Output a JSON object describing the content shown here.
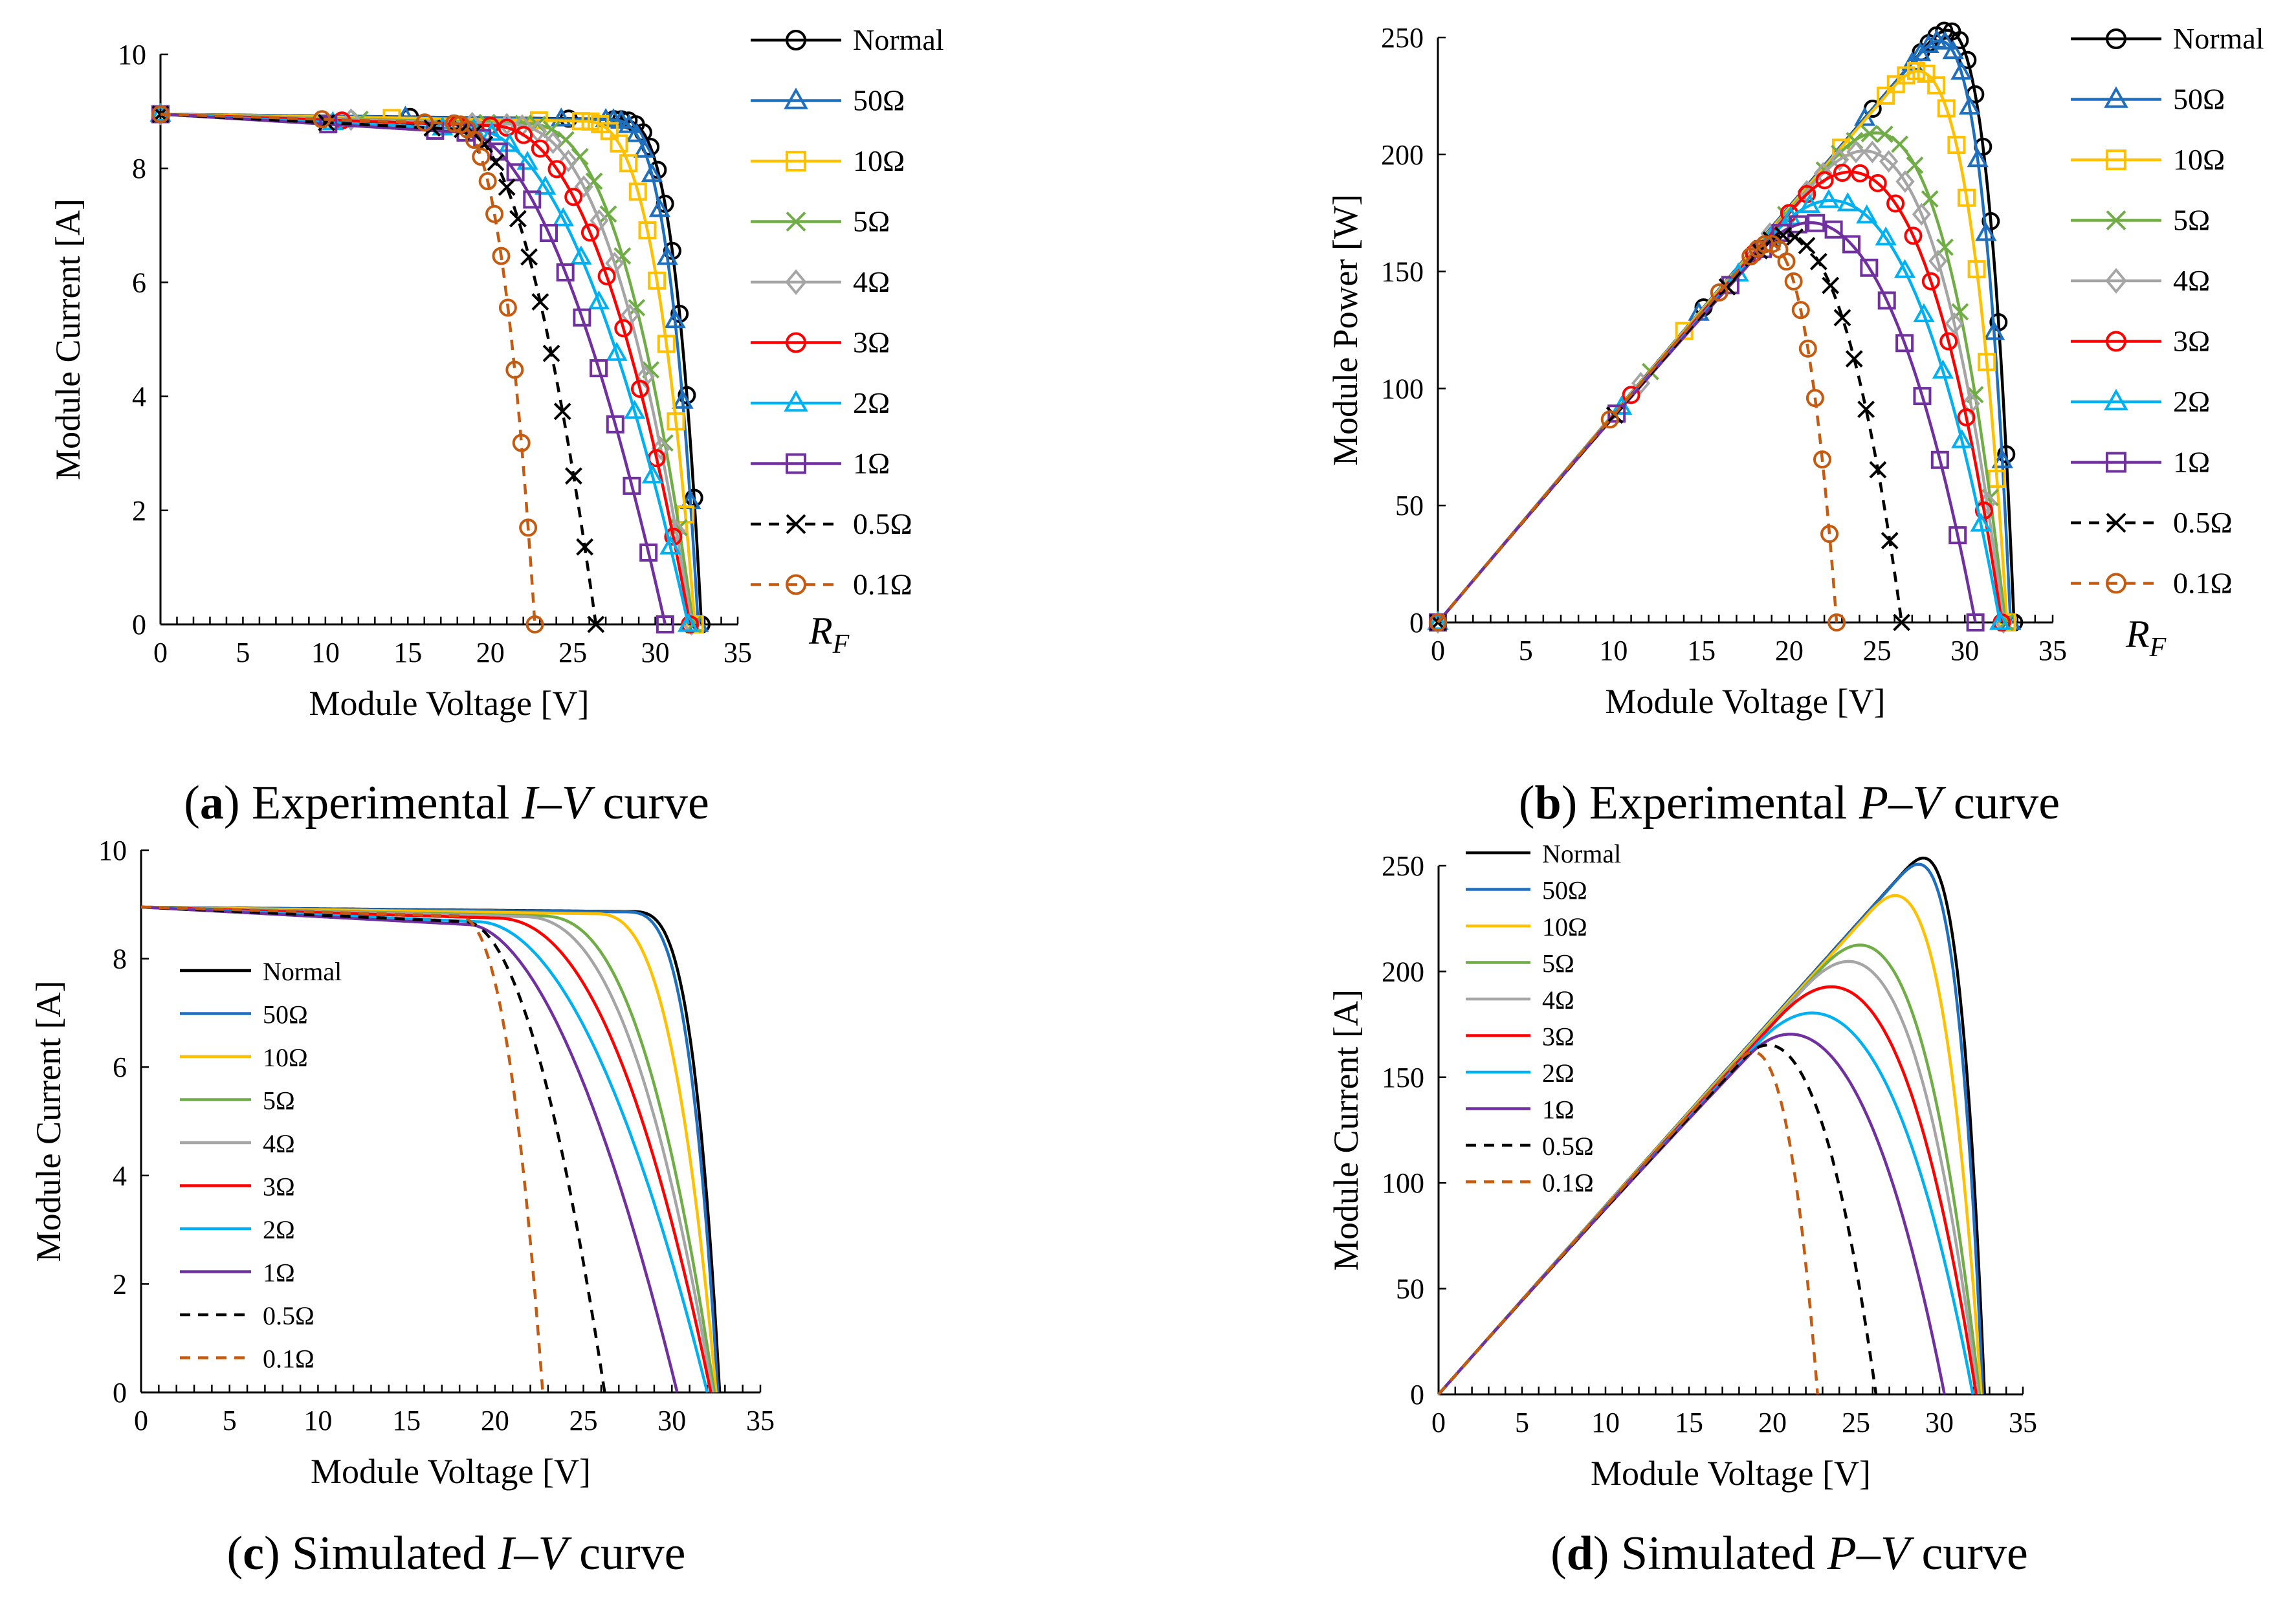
{
  "figure": {
    "rf_symbol": "R",
    "rf_subscript": "F"
  },
  "series_styles": [
    {
      "name": "Normal",
      "color": "#000000",
      "marker": "circle",
      "dash": false
    },
    {
      "name": "50Ω",
      "color": "#1f6fbf",
      "marker": "triangle",
      "dash": false
    },
    {
      "name": "10Ω",
      "color": "#ffc000",
      "marker": "square",
      "dash": false
    },
    {
      "name": "5Ω",
      "color": "#70ad47",
      "marker": "x",
      "dash": false
    },
    {
      "name": "4Ω",
      "color": "#a5a5a5",
      "marker": "diamond",
      "dash": false
    },
    {
      "name": "3Ω",
      "color": "#ff0000",
      "marker": "circle",
      "dash": false
    },
    {
      "name": "2Ω",
      "color": "#00b0f0",
      "marker": "triangle",
      "dash": false
    },
    {
      "name": "1Ω",
      "color": "#7030a0",
      "marker": "square",
      "dash": false
    },
    {
      "name": "0.5Ω",
      "color": "#000000",
      "marker": "x",
      "dash": true
    },
    {
      "name": "0.1Ω",
      "color": "#c55a11",
      "marker": "circle",
      "dash": true
    }
  ],
  "chart_data": [
    {
      "id": "a",
      "type": "line",
      "caption": {
        "letter": "a",
        "text": "Experimental ",
        "italic": "I–V",
        "rest": " curve"
      },
      "xlabel": "Module Voltage [V]",
      "ylabel": "Module Current [A]",
      "xlim": [
        0,
        35
      ],
      "ylim": [
        0,
        10
      ],
      "xticks": [
        "0",
        "5",
        "10",
        "15",
        "20",
        "25",
        "30",
        "35"
      ],
      "yticks": [
        "0",
        "2",
        "4",
        "6",
        "8",
        "10"
      ],
      "markers": true,
      "legend_position": "right",
      "series": [
        {
          "name": "Normal",
          "isc": 8.95,
          "voc": 32.8,
          "knee": 27.5,
          "k": 0.65
        },
        {
          "name": "50Ω",
          "isc": 8.95,
          "voc": 32.6,
          "knee": 27.0,
          "k": 0.7
        },
        {
          "name": "10Ω",
          "isc": 8.95,
          "voc": 32.4,
          "knee": 25.5,
          "k": 0.9
        },
        {
          "name": "5Ω",
          "isc": 8.95,
          "voc": 32.3,
          "knee": 22.0,
          "k": 1.2
        },
        {
          "name": "4Ω",
          "isc": 8.95,
          "voc": 32.2,
          "knee": 21.0,
          "k": 1.3
        },
        {
          "name": "3Ω",
          "isc": 8.95,
          "voc": 32.1,
          "knee": 20.0,
          "k": 1.5
        },
        {
          "name": "2Ω",
          "isc": 8.95,
          "voc": 32.0,
          "knee": 19.0,
          "k": 2.0
        },
        {
          "name": "1Ω",
          "isc": 8.95,
          "voc": 30.6,
          "knee": 18.5,
          "k": 2.4
        },
        {
          "name": "0.5Ω",
          "isc": 8.95,
          "voc": 26.4,
          "knee": 18.3,
          "k": 2.0
        },
        {
          "name": "0.1Ω",
          "isc": 8.95,
          "voc": 22.7,
          "knee": 17.8,
          "k": 1.2
        }
      ]
    },
    {
      "id": "b",
      "type": "line",
      "caption": {
        "letter": "b",
        "text": "Experimental ",
        "italic": "P–V",
        "rest": " curve"
      },
      "xlabel": "Module Voltage [V]",
      "ylabel": "Module Power [W]",
      "xlim": [
        0,
        35
      ],
      "ylim": [
        0,
        250
      ],
      "xticks": [
        "0",
        "5",
        "10",
        "15",
        "20",
        "25",
        "30",
        "35"
      ],
      "yticks": [
        "0",
        "50",
        "100",
        "150",
        "200",
        "250"
      ],
      "markers": true,
      "legend_position": "right",
      "series": [
        {
          "name": "Normal",
          "isc": 8.95,
          "voc": 32.8,
          "knee": 27.5,
          "k": 0.65
        },
        {
          "name": "50Ω",
          "isc": 8.95,
          "voc": 32.6,
          "knee": 27.0,
          "k": 0.7
        },
        {
          "name": "10Ω",
          "isc": 8.95,
          "voc": 32.4,
          "knee": 25.5,
          "k": 0.9
        },
        {
          "name": "5Ω",
          "isc": 8.95,
          "voc": 32.3,
          "knee": 22.0,
          "k": 1.2
        },
        {
          "name": "4Ω",
          "isc": 8.95,
          "voc": 32.2,
          "knee": 21.0,
          "k": 1.3
        },
        {
          "name": "3Ω",
          "isc": 8.95,
          "voc": 32.1,
          "knee": 20.0,
          "k": 1.5
        },
        {
          "name": "2Ω",
          "isc": 8.95,
          "voc": 32.0,
          "knee": 19.0,
          "k": 2.0
        },
        {
          "name": "1Ω",
          "isc": 8.95,
          "voc": 30.6,
          "knee": 18.5,
          "k": 2.4
        },
        {
          "name": "0.5Ω",
          "isc": 8.95,
          "voc": 26.4,
          "knee": 18.3,
          "k": 2.0
        },
        {
          "name": "0.1Ω",
          "isc": 8.95,
          "voc": 22.7,
          "knee": 17.8,
          "k": 1.2
        }
      ]
    },
    {
      "id": "c",
      "type": "line",
      "caption": {
        "letter": "c",
        "text": "Simulated ",
        "italic": "I–V",
        "rest": " curve"
      },
      "xlabel": "Module Voltage [V]",
      "ylabel": "Module Current [A]",
      "xlim": [
        0,
        35
      ],
      "ylim": [
        0,
        10
      ],
      "xticks": [
        "0",
        "5",
        "10",
        "15",
        "20",
        "25",
        "30",
        "35"
      ],
      "yticks": [
        "0",
        "2",
        "4",
        "6",
        "8",
        "10"
      ],
      "markers": false,
      "legend_position": "left",
      "series": [
        {
          "name": "Normal",
          "isc": 8.95,
          "voc": 32.7,
          "knee": 27.5,
          "k": 0.6
        },
        {
          "name": "50Ω",
          "isc": 8.95,
          "voc": 32.6,
          "knee": 27.2,
          "k": 0.65
        },
        {
          "name": "10Ω",
          "isc": 8.95,
          "voc": 32.5,
          "knee": 25.5,
          "k": 0.9
        },
        {
          "name": "5Ω",
          "isc": 8.95,
          "voc": 32.4,
          "knee": 22.5,
          "k": 1.2
        },
        {
          "name": "4Ω",
          "isc": 8.95,
          "voc": 32.3,
          "knee": 21.5,
          "k": 1.3
        },
        {
          "name": "3Ω",
          "isc": 8.95,
          "voc": 32.2,
          "knee": 20.0,
          "k": 1.5
        },
        {
          "name": "2Ω",
          "isc": 8.95,
          "voc": 32.0,
          "knee": 19.0,
          "k": 2.0
        },
        {
          "name": "1Ω",
          "isc": 8.95,
          "voc": 30.3,
          "knee": 18.5,
          "k": 2.4
        },
        {
          "name": "0.5Ω",
          "isc": 8.95,
          "voc": 26.2,
          "knee": 18.3,
          "k": 2.0
        },
        {
          "name": "0.1Ω",
          "isc": 8.95,
          "voc": 22.7,
          "knee": 17.8,
          "k": 1.2
        }
      ]
    },
    {
      "id": "d",
      "type": "line",
      "caption": {
        "letter": "d",
        "text": "Simulated ",
        "italic": "P–V",
        "rest": " curve"
      },
      "xlabel": "Module Voltage [V]",
      "ylabel": "Module Current [A]",
      "xlim": [
        0,
        35
      ],
      "ylim": [
        0,
        250
      ],
      "xticks": [
        "0",
        "5",
        "10",
        "15",
        "20",
        "25",
        "30",
        "35"
      ],
      "yticks": [
        "0",
        "50",
        "100",
        "150",
        "200",
        "250"
      ],
      "markers": false,
      "legend_position": "top-left",
      "series": [
        {
          "name": "Normal",
          "isc": 8.95,
          "voc": 32.7,
          "knee": 27.5,
          "k": 0.6
        },
        {
          "name": "50Ω",
          "isc": 8.95,
          "voc": 32.6,
          "knee": 27.2,
          "k": 0.65
        },
        {
          "name": "10Ω",
          "isc": 8.95,
          "voc": 32.5,
          "knee": 25.5,
          "k": 0.9
        },
        {
          "name": "5Ω",
          "isc": 8.95,
          "voc": 32.4,
          "knee": 22.5,
          "k": 1.2
        },
        {
          "name": "4Ω",
          "isc": 8.95,
          "voc": 32.3,
          "knee": 21.5,
          "k": 1.3
        },
        {
          "name": "3Ω",
          "isc": 8.95,
          "voc": 32.2,
          "knee": 20.0,
          "k": 1.5
        },
        {
          "name": "2Ω",
          "isc": 8.95,
          "voc": 32.0,
          "knee": 19.0,
          "k": 2.0
        },
        {
          "name": "1Ω",
          "isc": 8.95,
          "voc": 30.3,
          "knee": 18.5,
          "k": 2.4
        },
        {
          "name": "0.5Ω",
          "isc": 8.95,
          "voc": 26.2,
          "knee": 18.3,
          "k": 2.0
        },
        {
          "name": "0.1Ω",
          "isc": 8.95,
          "voc": 22.7,
          "knee": 17.8,
          "k": 1.2
        }
      ]
    }
  ]
}
